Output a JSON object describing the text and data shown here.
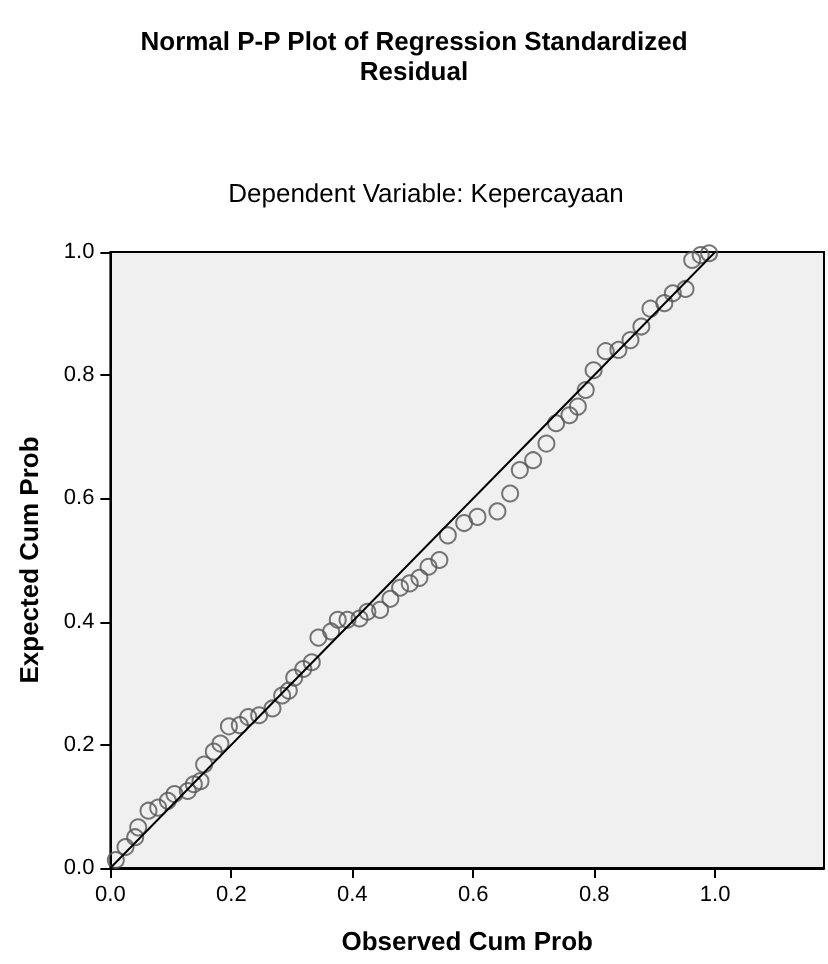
{
  "chart_data": {
    "type": "scatter",
    "title": "Normal P-P Plot of Regression Standardized\nResidual",
    "subtitle": "Dependent Variable: Kepercayaan",
    "xlabel": "Observed Cum Prob",
    "ylabel": "Expected Cum Prob",
    "xlim": [
      0,
      1.18
    ],
    "ylim": [
      0,
      1
    ],
    "xticks": [
      {
        "value": 0,
        "label": "0.0"
      },
      {
        "value": 0.2,
        "label": "0.2"
      },
      {
        "value": 0.4,
        "label": "0.4"
      },
      {
        "value": 0.6,
        "label": "0.6"
      },
      {
        "value": 0.8,
        "label": "0.8"
      },
      {
        "value": 1,
        "label": "1.0"
      }
    ],
    "yticks": [
      {
        "value": 0,
        "label": "0.0"
      },
      {
        "value": 0.2,
        "label": "0.2"
      },
      {
        "value": 0.4,
        "label": "0.4"
      },
      {
        "value": 0.6,
        "label": "0.6"
      },
      {
        "value": 0.8,
        "label": "0.8"
      },
      {
        "value": 1,
        "label": "1.0"
      }
    ],
    "grid": false,
    "series": [
      {
        "marker": "circle",
        "color": "#555555",
        "x": [
          0.009,
          0.025,
          0.041,
          0.046,
          0.063,
          0.079,
          0.095,
          0.106,
          0.128,
          0.138,
          0.149,
          0.155,
          0.171,
          0.182,
          0.196,
          0.214,
          0.228,
          0.246,
          0.268,
          0.284,
          0.295,
          0.304,
          0.319,
          0.333,
          0.344,
          0.365,
          0.376,
          0.392,
          0.412,
          0.425,
          0.446,
          0.463,
          0.479,
          0.495,
          0.511,
          0.526,
          0.544,
          0.558,
          0.585,
          0.607,
          0.64,
          0.661,
          0.677,
          0.699,
          0.721,
          0.737,
          0.759,
          0.773,
          0.786,
          0.799,
          0.819,
          0.84,
          0.86,
          0.878,
          0.893,
          0.916,
          0.93,
          0.951,
          0.962,
          0.976,
          0.99
        ],
        "values": [
          0.013,
          0.034,
          0.05,
          0.066,
          0.093,
          0.098,
          0.109,
          0.12,
          0.125,
          0.136,
          0.141,
          0.168,
          0.189,
          0.202,
          0.23,
          0.232,
          0.245,
          0.248,
          0.259,
          0.28,
          0.288,
          0.309,
          0.323,
          0.334,
          0.374,
          0.384,
          0.403,
          0.403,
          0.405,
          0.416,
          0.419,
          0.437,
          0.455,
          0.462,
          0.471,
          0.489,
          0.5,
          0.54,
          0.56,
          0.57,
          0.579,
          0.608,
          0.646,
          0.662,
          0.689,
          0.722,
          0.735,
          0.749,
          0.776,
          0.808,
          0.839,
          0.841,
          0.857,
          0.879,
          0.908,
          0.917,
          0.933,
          0.94,
          0.987,
          0.995,
          0.998
        ]
      },
      {
        "type": "line",
        "marker": "none",
        "color": "#000000",
        "x": [
          0,
          1
        ],
        "values": [
          0,
          1
        ]
      }
    ]
  }
}
